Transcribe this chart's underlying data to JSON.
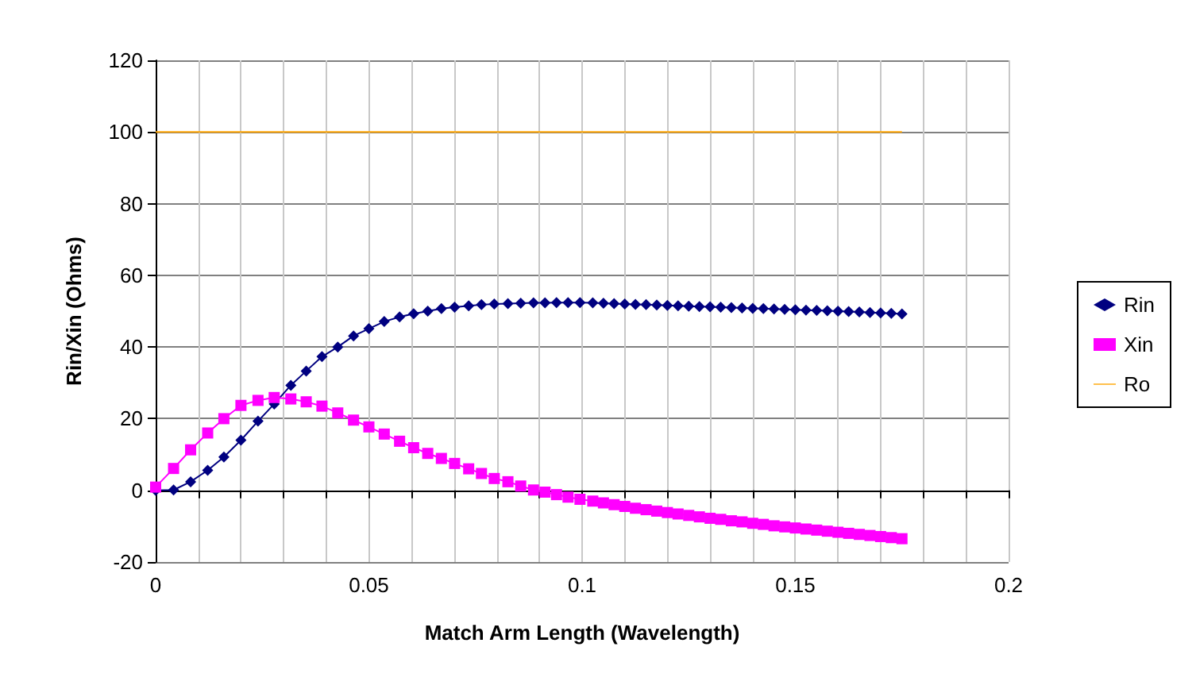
{
  "chart_data": {
    "type": "line",
    "xlabel": "Match Arm Length (Wavelength)",
    "ylabel": "Rin/Xin (Ohms)",
    "xlim": [
      0,
      0.2
    ],
    "xticks": [
      0,
      {
        "value": 0.01,
        "label": null
      },
      {
        "value": 0.02,
        "label": null
      },
      {
        "value": 0.03,
        "label": null
      },
      {
        "value": 0.04,
        "label": null
      },
      0.05,
      {
        "value": 0.06,
        "label": null
      },
      {
        "value": 0.07,
        "label": null
      },
      {
        "value": 0.08,
        "label": null
      },
      {
        "value": 0.09,
        "label": null
      },
      0.1,
      {
        "value": 0.11,
        "label": null
      },
      {
        "value": 0.12,
        "label": null
      },
      {
        "value": 0.13,
        "label": null
      },
      {
        "value": 0.14,
        "label": null
      },
      0.15,
      {
        "value": 0.16,
        "label": null
      },
      {
        "value": 0.17,
        "label": null
      },
      {
        "value": 0.18,
        "label": null
      },
      {
        "value": 0.19,
        "label": null
      },
      0.2
    ],
    "ylim": [
      -20,
      120
    ],
    "yticks": [
      -20,
      0,
      20,
      40,
      60,
      80,
      100,
      120
    ],
    "grid": true,
    "legend": "right",
    "series": [
      {
        "name": "Rin",
        "color": "#000080",
        "marker": "diamond",
        "x": [
          0,
          0.0042,
          0.0082,
          0.0122,
          0.016,
          0.02,
          0.024,
          0.0278,
          0.0317,
          0.0353,
          0.039,
          0.0427,
          0.0464,
          0.05,
          0.0536,
          0.0572,
          0.0605,
          0.0638,
          0.067,
          0.0701,
          0.0734,
          0.0764,
          0.0794,
          0.0826,
          0.0856,
          0.0886,
          0.0913,
          0.094,
          0.0967,
          0.0995,
          0.1025,
          0.105,
          0.1075,
          0.11,
          0.1125,
          0.115,
          0.1175,
          0.12,
          0.1225,
          0.125,
          0.1275,
          0.13,
          0.1325,
          0.135,
          0.1375,
          0.14,
          0.1425,
          0.145,
          0.1475,
          0.15,
          0.1525,
          0.155,
          0.1575,
          0.16,
          0.1625,
          0.165,
          0.1675,
          0.17,
          0.1725,
          0.175
        ],
        "values": [
          0,
          0.1,
          2.4,
          5.6,
          9.3,
          14,
          19.3,
          24.1,
          29.3,
          33.3,
          37.3,
          40,
          43.1,
          45.1,
          47.1,
          48.4,
          49.3,
          50,
          50.7,
          51.1,
          51.5,
          51.8,
          52,
          52.1,
          52.2,
          52.3,
          52.3,
          52.4,
          52.4,
          52.4,
          52.3,
          52.2,
          52.1,
          52,
          51.9,
          51.8,
          51.7,
          51.6,
          51.5,
          51.4,
          51.3,
          51.2,
          51.1,
          51,
          50.9,
          50.8,
          50.7,
          50.6,
          50.5,
          50.4,
          50.3,
          50.2,
          50.1,
          50,
          49.9,
          49.8,
          49.6,
          49.5,
          49.4,
          49.2
        ]
      },
      {
        "name": "Xin",
        "color": "#ff00ff",
        "marker": "square",
        "x": [
          0,
          0.0042,
          0.0082,
          0.0122,
          0.016,
          0.02,
          0.024,
          0.0278,
          0.0317,
          0.0353,
          0.039,
          0.0427,
          0.0464,
          0.05,
          0.0536,
          0.0572,
          0.0605,
          0.0638,
          0.067,
          0.0701,
          0.0734,
          0.0764,
          0.0794,
          0.0826,
          0.0856,
          0.0886,
          0.0913,
          0.094,
          0.0967,
          0.0995,
          0.1025,
          0.105,
          0.1075,
          0.11,
          0.1125,
          0.115,
          0.1175,
          0.12,
          0.1225,
          0.125,
          0.1275,
          0.13,
          0.1325,
          0.135,
          0.1375,
          0.14,
          0.1425,
          0.145,
          0.1475,
          0.15,
          0.1525,
          0.155,
          0.1575,
          0.16,
          0.1625,
          0.165,
          0.1675,
          0.17,
          0.1725,
          0.175
        ],
        "values": [
          0.9,
          6.1,
          11.3,
          16,
          20,
          23.7,
          25.1,
          25.9,
          25.5,
          24.7,
          23.5,
          21.6,
          19.6,
          17.7,
          15.7,
          13.7,
          11.9,
          10.3,
          8.9,
          7.5,
          6,
          4.7,
          3.3,
          2.4,
          1.2,
          0.1,
          -0.5,
          -1.2,
          -1.9,
          -2.5,
          -3,
          -3.5,
          -4,
          -4.5,
          -5,
          -5.4,
          -5.8,
          -6.2,
          -6.6,
          -7,
          -7.4,
          -7.8,
          -8.1,
          -8.5,
          -8.8,
          -9.2,
          -9.5,
          -9.9,
          -10.2,
          -10.5,
          -10.8,
          -11.1,
          -11.4,
          -11.7,
          -12,
          -12.3,
          -12.6,
          -12.9,
          -13.2,
          -13.5
        ]
      },
      {
        "name": "Ro",
        "color": "#ffa500",
        "marker": "none",
        "x": [
          0,
          0.175
        ],
        "values": [
          100,
          100
        ]
      }
    ]
  }
}
